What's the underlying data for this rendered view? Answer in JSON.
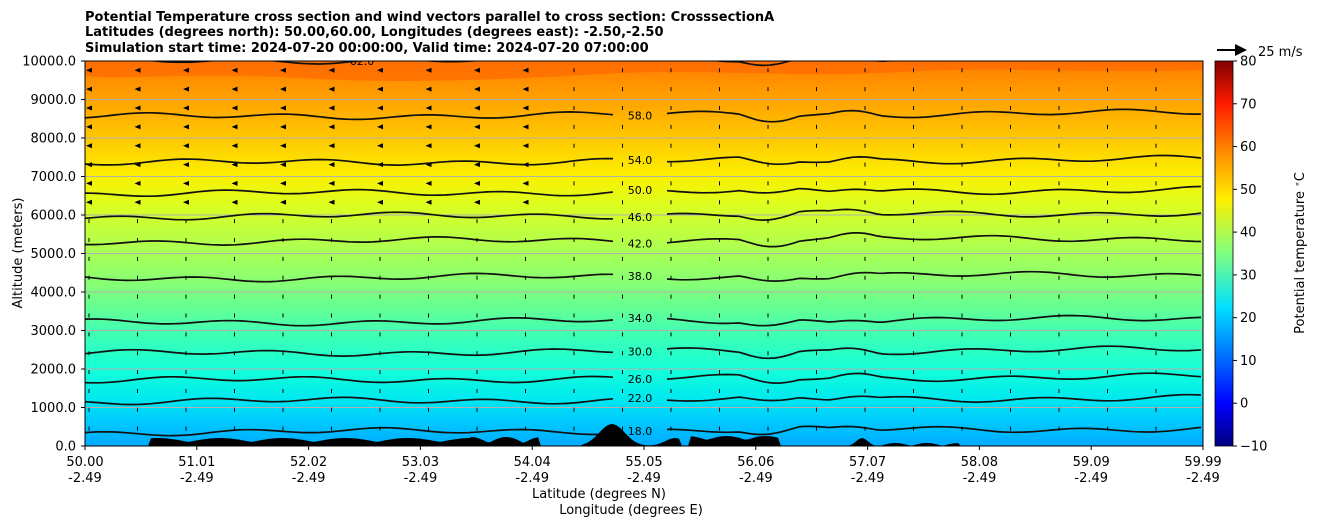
{
  "chart_data": {
    "type": "contour-cross-section",
    "title_lines": [
      "Potential Temperature cross section and wind vectors parallel to cross section: CrosssectionA",
      "Latitudes (degrees north): 50.00,60.00, Longitudes (degrees east): -2.50,-2.50",
      "Simulation start time: 2024-07-20 00:00:00, Valid time: 2024-07-20 07:00:00"
    ],
    "ylabel": "Altitude (meters)",
    "xlabel_line1": "Latitude (degrees N)",
    "xlabel_line2": "Longitude (degrees E)",
    "ylim": [
      0,
      10000
    ],
    "y_ticks": [
      "0.0",
      "1000.0",
      "2000.0",
      "3000.0",
      "4000.0",
      "5000.0",
      "6000.0",
      "7000.0",
      "8000.0",
      "9000.0",
      "10000.0"
    ],
    "x_ticks": [
      {
        "lat": "50.00",
        "lon": "-2.49"
      },
      {
        "lat": "51.01",
        "lon": "-2.49"
      },
      {
        "lat": "52.02",
        "lon": "-2.49"
      },
      {
        "lat": "53.03",
        "lon": "-2.49"
      },
      {
        "lat": "54.04",
        "lon": "-2.49"
      },
      {
        "lat": "55.05",
        "lon": "-2.49"
      },
      {
        "lat": "56.06",
        "lon": "-2.49"
      },
      {
        "lat": "57.07",
        "lon": "-2.49"
      },
      {
        "lat": "58.08",
        "lon": "-2.49"
      },
      {
        "lat": "59.09",
        "lon": "-2.49"
      },
      {
        "lat": "59.99",
        "lon": "-2.49"
      }
    ],
    "contours": [
      {
        "value": 18.0,
        "label": "18.0",
        "altitude_m": 350
      },
      {
        "value": 22.0,
        "label": "22.0",
        "altitude_m": 1150
      },
      {
        "value": 26.0,
        "label": "26.0",
        "altitude_m": 1700
      },
      {
        "value": 30.0,
        "label": "30.0",
        "altitude_m": 2400
      },
      {
        "value": 34.0,
        "label": "34.0",
        "altitude_m": 3200
      },
      {
        "value": 38.0,
        "label": "38.0",
        "altitude_m": 4350
      },
      {
        "value": 42.0,
        "label": "42.0",
        "altitude_m": 5300
      },
      {
        "value": 46.0,
        "label": "46.0",
        "altitude_m": 5950
      },
      {
        "value": 50.0,
        "label": "50.0",
        "altitude_m": 6550
      },
      {
        "value": 54.0,
        "label": "54.0",
        "altitude_m": 7350
      },
      {
        "value": 58.0,
        "label": "58.0",
        "altitude_m": 8550
      },
      {
        "value": 62.0,
        "label": "62.0",
        "altitude_m": 10000
      }
    ],
    "colorbar": {
      "label": "Potential temperature $^\\circ$C",
      "range": [
        -10,
        80
      ],
      "ticks": [
        "−10",
        "0",
        "10",
        "20",
        "30",
        "40",
        "50",
        "60",
        "70",
        "80"
      ]
    },
    "wind_reference": {
      "label": "25 m/s",
      "speed_ms": 25
    },
    "grid": true,
    "colormap": "jet",
    "terrain_color": "#000000"
  }
}
